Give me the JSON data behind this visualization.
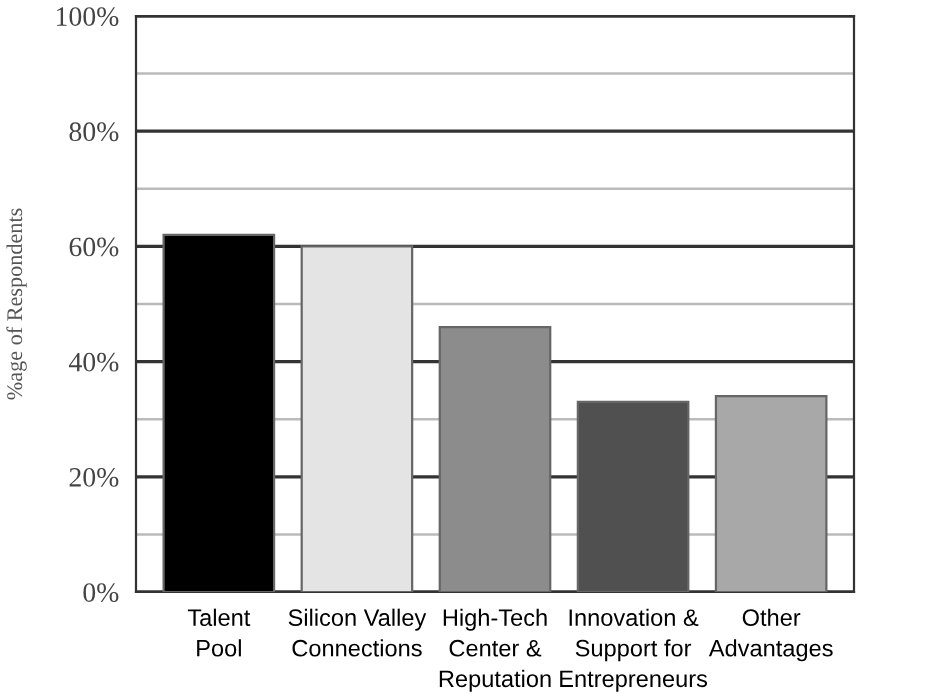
{
  "chart_data": {
    "type": "bar",
    "ylabel": "%age of Respondents",
    "categories": [
      "Talent\nPool",
      "Silicon Valley\nConnections",
      "High-Tech\nCenter &\nReputation",
      "Innovation &\nSupport for\nEntrepreneurs",
      "Other\nAdvantages"
    ],
    "values": [
      62,
      60,
      46,
      33,
      34
    ],
    "colors": [
      "#000000",
      "#e4e4e4",
      "#8c8c8c",
      "#505050",
      "#a8a8a8"
    ],
    "ylim": [
      0,
      100
    ],
    "yticks": [
      {
        "value": 0,
        "label": "0%"
      },
      {
        "value": 10,
        "label": null
      },
      {
        "value": 20,
        "label": "20%"
      },
      {
        "value": 30,
        "label": null
      },
      {
        "value": 40,
        "label": "40%"
      },
      {
        "value": 50,
        "label": null
      },
      {
        "value": 60,
        "label": "60%"
      },
      {
        "value": 70,
        "label": null
      },
      {
        "value": 80,
        "label": "80%"
      },
      {
        "value": 90,
        "label": null
      },
      {
        "value": 100,
        "label": "100%"
      }
    ],
    "grid": "y"
  }
}
